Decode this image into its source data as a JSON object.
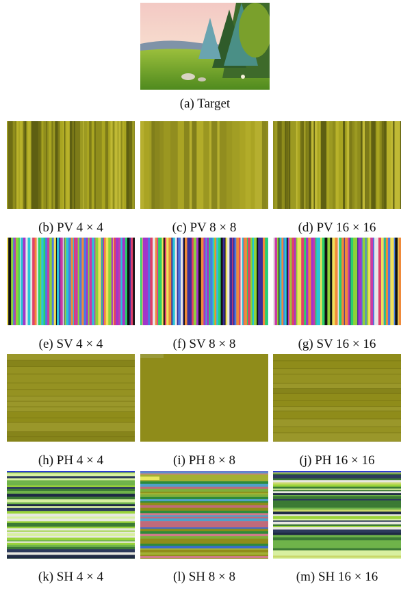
{
  "figure": {
    "target": {
      "caption": "(a) Target"
    },
    "panels": [
      {
        "id": "b",
        "caption": "(b) PV 4 × 4",
        "kind": "pv"
      },
      {
        "id": "c",
        "caption": "(c) PV 8 × 8",
        "kind": "pv-smooth"
      },
      {
        "id": "d",
        "caption": "(d) PV 16 × 16",
        "kind": "pv"
      },
      {
        "id": "e",
        "caption": "(e) SV 4 × 4",
        "kind": "sv"
      },
      {
        "id": "f",
        "caption": "(f) SV 8 × 8",
        "kind": "sv"
      },
      {
        "id": "g",
        "caption": "(g) SV 16 × 16",
        "kind": "sv"
      },
      {
        "id": "h",
        "caption": "(h) PH 4 × 4",
        "kind": "ph"
      },
      {
        "id": "i",
        "caption": "(i) PH 8 × 8",
        "kind": "ph-flat"
      },
      {
        "id": "j",
        "caption": "(j) PH 16 × 16",
        "kind": "ph"
      },
      {
        "id": "k",
        "caption": "(k) SH 4 × 4",
        "kind": "sh"
      },
      {
        "id": "l",
        "caption": "(l) SH 8 × 8",
        "kind": "sh-mixed"
      },
      {
        "id": "m",
        "caption": "(m) SH 16 × 16",
        "kind": "sh"
      }
    ],
    "palettes": {
      "pv": [
        "#a9a521",
        "#8f8d1c",
        "#6e6d14",
        "#b8b22a",
        "#7d7b18",
        "#5e5f12",
        "#9c9a22",
        "#c0b935"
      ],
      "sv": [
        "#e0406a",
        "#3b2f99",
        "#29c4d9",
        "#f0e05a",
        "#a335c9",
        "#2bd06b",
        "#111111",
        "#e7e7e7",
        "#f08a3a",
        "#4a7be0",
        "#8fd13a",
        "#c93aa5"
      ],
      "ph": [
        "#8f8c1a",
        "#959222",
        "#86841a",
        "#9a972a"
      ],
      "sh": [
        "#2c3a5c",
        "#e8e8e0",
        "#9bd43a",
        "#3b7a34",
        "#c9d86a",
        "#1e2a44",
        "#6fb34a",
        "#d8f0a0"
      ],
      "sh_mixed": [
        "#2e8a3a",
        "#c06a7a",
        "#8f8c1a",
        "#4fa0c8",
        "#a3b033",
        "#d07a8a",
        "#3a6ad0",
        "#7fae3a"
      ]
    }
  }
}
